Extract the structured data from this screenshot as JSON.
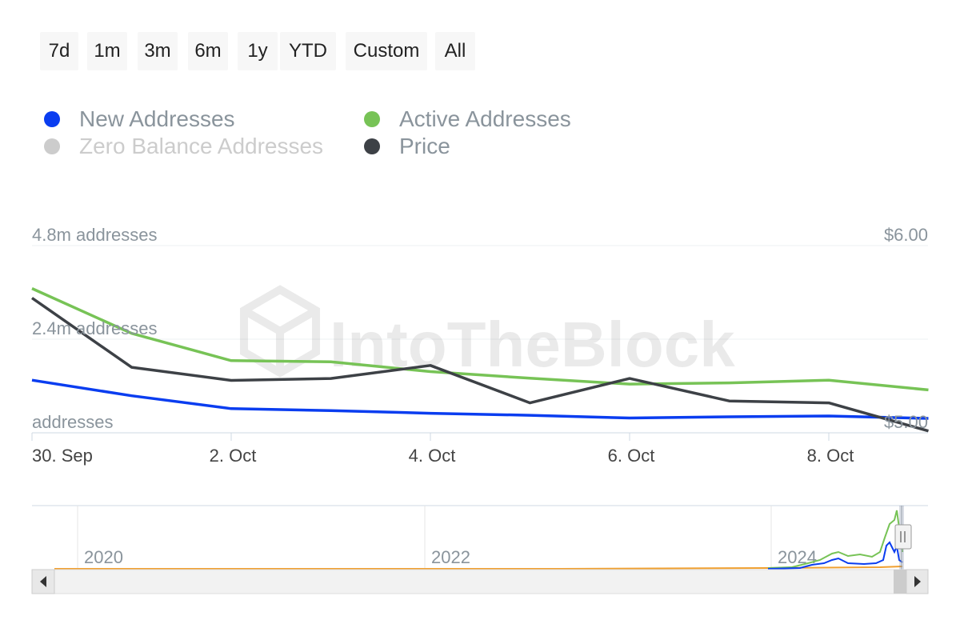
{
  "range_selector": {
    "buttons": [
      {
        "label": "7d"
      },
      {
        "label": "1m"
      },
      {
        "label": "3m"
      },
      {
        "label": "6m"
      },
      {
        "label": "1y"
      },
      {
        "label": "YTD"
      },
      {
        "label": "Custom"
      },
      {
        "label": "All"
      }
    ]
  },
  "legend": {
    "items": [
      {
        "label": "New Addresses",
        "color": "#0a3df0",
        "hidden": false
      },
      {
        "label": "Active Addresses",
        "color": "#77c356",
        "hidden": false
      },
      {
        "label": "Zero Balance Addresses",
        "color": "#cccccc",
        "hidden": true
      },
      {
        "label": "Price",
        "color": "#3d4146",
        "hidden": false
      }
    ]
  },
  "watermark": {
    "text": "IntoTheBlock"
  },
  "chart_data": {
    "type": "line",
    "x": [
      "30. Sep",
      "1. Oct",
      "2. Oct",
      "3. Oct",
      "4. Oct",
      "5. Oct",
      "6. Oct",
      "7. Oct",
      "8. Oct",
      "8.9 Oct"
    ],
    "x_ticks": [
      "30. Sep",
      "2. Oct",
      "4. Oct",
      "6. Oct",
      "8. Oct"
    ],
    "y_left": {
      "ticks": [
        {
          "value": 4.8,
          "label": "4.8m addresses"
        },
        {
          "value": 2.4,
          "label": "2.4m addresses"
        },
        {
          "value": 0,
          "label": "addresses"
        }
      ],
      "ylim": [
        0,
        4.8
      ]
    },
    "y_right": {
      "ticks": [
        {
          "value": 6.0,
          "label": "$6.00"
        },
        {
          "value": 5.0,
          "label": "$5.00"
        }
      ],
      "ylim": [
        5.0,
        6.0
      ]
    },
    "series": [
      {
        "name": "New Addresses",
        "axis": "left",
        "color": "#0a3df0",
        "values": [
          1.35,
          0.95,
          0.62,
          0.57,
          0.5,
          0.45,
          0.38,
          0.41,
          0.43,
          0.37
        ]
      },
      {
        "name": "Active Addresses",
        "axis": "left",
        "color": "#77c356",
        "values": [
          3.7,
          2.55,
          1.85,
          1.82,
          1.57,
          1.4,
          1.25,
          1.28,
          1.35,
          1.1
        ]
      },
      {
        "name": "Price",
        "axis": "right",
        "color": "#3d4146",
        "values": [
          5.72,
          5.35,
          5.28,
          5.29,
          5.36,
          5.16,
          5.29,
          5.17,
          5.16,
          5.01
        ]
      }
    ],
    "grid": true,
    "navigator": {
      "labels": [
        "2020",
        "2022",
        "2024"
      ],
      "series": [
        {
          "name": "Active Addresses",
          "color": "#77c356"
        },
        {
          "name": "New Addresses",
          "color": "#0a3df0"
        },
        {
          "name": "Price",
          "color": "#f0a030"
        }
      ]
    }
  }
}
